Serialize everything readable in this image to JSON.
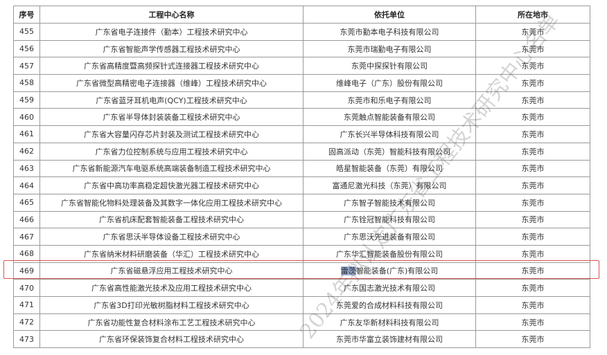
{
  "table": {
    "headers": [
      "序号",
      "工程中心名称",
      "依托单位",
      "所在地市"
    ],
    "rows": [
      [
        "455",
        "广东省电子连接件（勤本）工程技术研究中心",
        "东莞市勤本电子科技有限公司",
        "东莞市"
      ],
      [
        "456",
        "广东省智能声学传感器工程技术研究中心",
        "东莞市瑞勤电子有限公司",
        "东莞市"
      ],
      [
        "457",
        "广东省高精度暨高频探针式连接器工程技术研究中心",
        "东莞中探探针有限公司",
        "东莞市"
      ],
      [
        "458",
        "广东省微型高精密电子连接器（维峰）工程技术研究中心",
        "维峰电子（广东）股份有限公司",
        "东莞市"
      ],
      [
        "459",
        "广东省蓝牙耳机电声(QCY)工程技术研究中心",
        "东莞市和乐电子有限公司",
        "东莞市"
      ],
      [
        "460",
        "广东省半导体封装装备工程技术研究中心",
        "东莞触点智能装备有限公司",
        "东莞市"
      ],
      [
        "461",
        "广东省大容量闪存芯片封装及测试工程技术研究中心",
        "广东长兴半导体科技有限公司",
        "东莞市"
      ],
      [
        "462",
        "广东省力位控制系统与应用工程技术研究中心",
        "固高派动（东莞）智能科技有限公司",
        "东莞市"
      ],
      [
        "463",
        "广东省新能源汽车电驱系统高端装备制造工程技术研究中心",
        "皓星智能装备（东莞）有限公司",
        "东莞市"
      ],
      [
        "464",
        "广东省中高功率高稳定超快激光器工程技术研究中心",
        "富通尼激光科技（东莞）有限公司",
        "东莞市"
      ],
      [
        "465",
        "广东省智能化物料处理装备及其数字一体化应用工程技术研究中心",
        "广东智子智能技术有限公司",
        "东莞市"
      ],
      [
        "466",
        "广东省机床配套智能装备工程技术研究中心",
        "广东铨冠智能科技有限公司",
        "东莞市"
      ],
      [
        "467",
        "广东省思沃半导体设备工程技术研究中心",
        "广东思沃先进装备有限公司",
        "东莞市"
      ],
      [
        "468",
        "广东省纳米材料研磨装备（华汇）工程技术研究中心",
        "广东华汇智能装备股份有限公司",
        "东莞市"
      ],
      [
        "469",
        "广东省磁悬浮应用工程技术研究中心",
        "智能装备(广东)有限公司",
        "东莞市"
      ],
      [
        "470",
        "广东省高性能激光技术及应用工程技术研究中心",
        "广东国志激光技术有限公司",
        "东莞市"
      ],
      [
        "471",
        "广东省3D打印光敏树脂材料工程技术研究中心",
        "东莞爱的合成材料科技有限公司",
        "东莞市"
      ],
      [
        "472",
        "广东省功能性复合材料涂布工艺工程技术研究中心",
        "广东友华新材料科技有限公司",
        "东莞市"
      ],
      [
        "473",
        "广东省环保装饰复合材料工程技术研究中心",
        "东莞市华富立装饰建材有限公司",
        "东莞市"
      ]
    ],
    "highlighted_row": "469",
    "highlighted_prefix": "雷茨"
  },
  "watermark": "2024年拟认定广东省工程技术研究中心名单",
  "colors": {
    "highlight_box": "#d9534f",
    "text_selection": "#9fb3d6"
  }
}
